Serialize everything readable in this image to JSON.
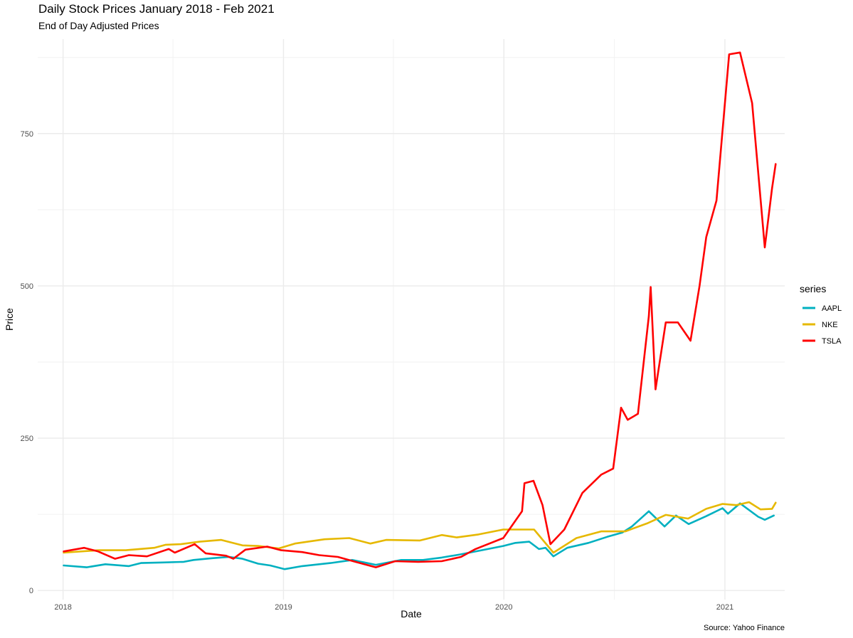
{
  "chart_data": {
    "type": "line",
    "title": "Daily Stock Prices January 2018 - Feb 2021",
    "subtitle": "End of Day Adjusted Prices",
    "caption": "Source: Yahoo Finance",
    "xlabel": "Date",
    "ylabel": "Price",
    "x_ticks": [
      "2018",
      "2019",
      "2020",
      "2021"
    ],
    "y_ticks": [
      0,
      250,
      500,
      750
    ],
    "xlim": [
      "2017-11-20",
      "2021-04-10"
    ],
    "ylim": [
      -15,
      905
    ],
    "grid": true,
    "legend": {
      "title": "series",
      "position": "right"
    },
    "series": [
      {
        "name": "AAPL",
        "color": "#00b0c0",
        "points": [
          [
            "2018-01-02",
            41
          ],
          [
            "2018-02-09",
            38
          ],
          [
            "2018-03-12",
            43
          ],
          [
            "2018-04-20",
            40
          ],
          [
            "2018-05-10",
            45
          ],
          [
            "2018-06-15",
            46
          ],
          [
            "2018-07-20",
            47
          ],
          [
            "2018-08-05",
            50
          ],
          [
            "2018-09-05",
            53
          ],
          [
            "2018-10-03",
            55
          ],
          [
            "2018-10-25",
            52
          ],
          [
            "2018-11-20",
            44
          ],
          [
            "2018-12-10",
            41
          ],
          [
            "2019-01-03",
            35
          ],
          [
            "2019-02-01",
            40
          ],
          [
            "2019-03-20",
            45
          ],
          [
            "2019-04-25",
            50
          ],
          [
            "2019-05-15",
            46
          ],
          [
            "2019-06-03",
            42
          ],
          [
            "2019-07-15",
            50
          ],
          [
            "2019-08-20",
            50
          ],
          [
            "2019-09-20",
            54
          ],
          [
            "2019-10-20",
            59
          ],
          [
            "2019-11-20",
            65
          ],
          [
            "2019-12-31",
            73
          ],
          [
            "2020-01-20",
            78
          ],
          [
            "2020-02-12",
            80
          ],
          [
            "2020-02-28",
            68
          ],
          [
            "2020-03-10",
            70
          ],
          [
            "2020-03-23",
            56
          ],
          [
            "2020-04-15",
            70
          ],
          [
            "2020-05-20",
            78
          ],
          [
            "2020-06-20",
            88
          ],
          [
            "2020-07-15",
            95
          ],
          [
            "2020-07-31",
            105
          ],
          [
            "2020-08-28",
            130
          ],
          [
            "2020-09-23",
            105
          ],
          [
            "2020-10-12",
            123
          ],
          [
            "2020-11-02",
            109
          ],
          [
            "2020-12-01",
            122
          ],
          [
            "2020-12-28",
            135
          ],
          [
            "2021-01-06",
            126
          ],
          [
            "2021-01-26",
            143
          ],
          [
            "2021-02-25",
            121
          ],
          [
            "2021-03-08",
            116
          ],
          [
            "2021-03-23",
            123
          ]
        ]
      },
      {
        "name": "NKE",
        "color": "#e6b800",
        "points": [
          [
            "2018-01-02",
            62
          ],
          [
            "2018-03-01",
            66
          ],
          [
            "2018-04-15",
            66
          ],
          [
            "2018-06-01",
            70
          ],
          [
            "2018-06-20",
            75
          ],
          [
            "2018-07-15",
            76
          ],
          [
            "2018-08-15",
            80
          ],
          [
            "2018-09-20",
            83
          ],
          [
            "2018-10-25",
            74
          ],
          [
            "2018-11-20",
            73
          ],
          [
            "2018-12-24",
            69
          ],
          [
            "2019-01-20",
            77
          ],
          [
            "2019-03-10",
            84
          ],
          [
            "2019-04-20",
            86
          ],
          [
            "2019-05-25",
            77
          ],
          [
            "2019-06-20",
            83
          ],
          [
            "2019-08-15",
            82
          ],
          [
            "2019-09-20",
            91
          ],
          [
            "2019-10-15",
            87
          ],
          [
            "2019-11-20",
            92
          ],
          [
            "2019-12-31",
            100
          ],
          [
            "2020-02-20",
            100
          ],
          [
            "2020-03-23",
            62
          ],
          [
            "2020-04-30",
            86
          ],
          [
            "2020-06-10",
            97
          ],
          [
            "2020-07-20",
            97
          ],
          [
            "2020-08-25",
            110
          ],
          [
            "2020-09-25",
            124
          ],
          [
            "2020-11-01",
            118
          ],
          [
            "2020-12-01",
            134
          ],
          [
            "2020-12-28",
            142
          ],
          [
            "2021-01-20",
            140
          ],
          [
            "2021-02-10",
            145
          ],
          [
            "2021-03-01",
            133
          ],
          [
            "2021-03-20",
            134
          ],
          [
            "2021-03-26",
            144
          ]
        ]
      },
      {
        "name": "TSLA",
        "color": "#ff0000",
        "points": [
          [
            "2018-01-02",
            64
          ],
          [
            "2018-02-05",
            70
          ],
          [
            "2018-02-28",
            64
          ],
          [
            "2018-03-28",
            52
          ],
          [
            "2018-04-20",
            58
          ],
          [
            "2018-05-20",
            56
          ],
          [
            "2018-06-25",
            68
          ],
          [
            "2018-07-05",
            62
          ],
          [
            "2018-08-07",
            76
          ],
          [
            "2018-08-25",
            61
          ],
          [
            "2018-09-28",
            57
          ],
          [
            "2018-10-10",
            52
          ],
          [
            "2018-10-30",
            67
          ],
          [
            "2018-12-05",
            72
          ],
          [
            "2018-12-28",
            66
          ],
          [
            "2019-02-01",
            63
          ],
          [
            "2019-03-01",
            58
          ],
          [
            "2019-04-01",
            55
          ],
          [
            "2019-04-30",
            47
          ],
          [
            "2019-06-03",
            38
          ],
          [
            "2019-07-05",
            48
          ],
          [
            "2019-08-12",
            47
          ],
          [
            "2019-09-20",
            48
          ],
          [
            "2019-10-22",
            55
          ],
          [
            "2019-11-15",
            68
          ],
          [
            "2019-12-31",
            86
          ],
          [
            "2020-01-31",
            130
          ],
          [
            "2020-02-04",
            176
          ],
          [
            "2020-02-19",
            180
          ],
          [
            "2020-03-05",
            140
          ],
          [
            "2020-03-18",
            76
          ],
          [
            "2020-04-10",
            100
          ],
          [
            "2020-05-10",
            160
          ],
          [
            "2020-06-10",
            190
          ],
          [
            "2020-06-30",
            200
          ],
          [
            "2020-07-13",
            300
          ],
          [
            "2020-07-24",
            280
          ],
          [
            "2020-08-10",
            290
          ],
          [
            "2020-08-28",
            450
          ],
          [
            "2020-08-31",
            498
          ],
          [
            "2020-09-08",
            330
          ],
          [
            "2020-09-25",
            440
          ],
          [
            "2020-10-15",
            440
          ],
          [
            "2020-11-05",
            410
          ],
          [
            "2020-11-20",
            500
          ],
          [
            "2020-12-01",
            580
          ],
          [
            "2020-12-18",
            640
          ],
          [
            "2021-01-08",
            880
          ],
          [
            "2021-01-26",
            883
          ],
          [
            "2021-02-15",
            800
          ],
          [
            "2021-03-05",
            598
          ],
          [
            "2021-03-08",
            563
          ],
          [
            "2021-03-20",
            660
          ],
          [
            "2021-03-26",
            700
          ]
        ]
      }
    ]
  }
}
